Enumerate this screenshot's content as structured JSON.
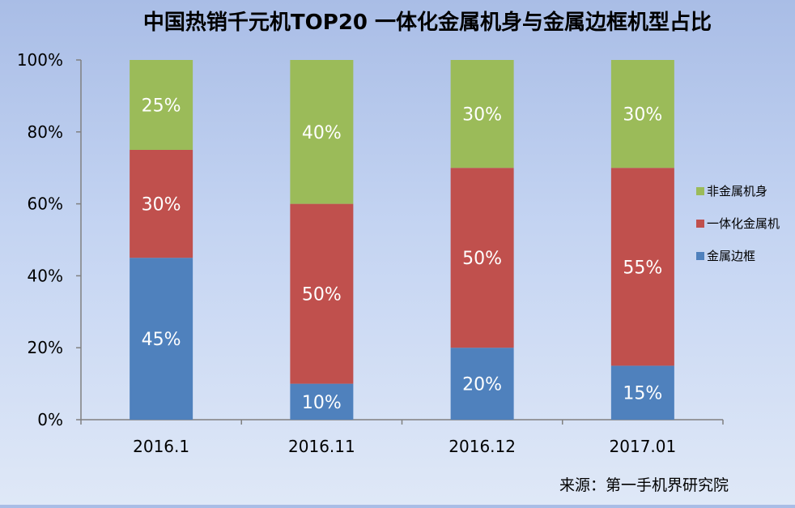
{
  "colors": {
    "metal_frame": "#4f81bd",
    "unibody_metal": "#c0504d",
    "non_metal": "#9bbb59",
    "axis": "#808080",
    "text": "#000000",
    "value_label": "#ffffff"
  },
  "chart_data": {
    "type": "bar",
    "stacked": true,
    "title": "中国热销千元机TOP20   一体化金属机身与金属边框机型占比",
    "source": "来源：第一手机界研究院",
    "categories": [
      "2016.1",
      "2016.11",
      "2016.12",
      "2017.01"
    ],
    "ylim": [
      0,
      100
    ],
    "yticks": [
      "0%",
      "20%",
      "40%",
      "60%",
      "80%",
      "100%"
    ],
    "ytick_values": [
      0,
      20,
      40,
      60,
      80,
      100
    ],
    "grid": false,
    "legend_position": "right",
    "series": [
      {
        "name": "金属边框",
        "values": [
          45,
          10,
          20,
          15
        ],
        "labels": [
          "45%",
          "10%",
          "20%",
          "15%"
        ],
        "color": "#4f81bd"
      },
      {
        "name": "一体化金属机",
        "values": [
          30,
          50,
          50,
          55
        ],
        "labels": [
          "30%",
          "50%",
          "50%",
          "55%"
        ],
        "color": "#c0504d"
      },
      {
        "name": "非金属机身",
        "values": [
          25,
          40,
          30,
          30
        ],
        "labels": [
          "25%",
          "40%",
          "30%",
          "30%"
        ],
        "color": "#9bbb59"
      }
    ],
    "legend_order": [
      "非金属机身",
      "一体化金属机",
      "金属边框"
    ]
  }
}
